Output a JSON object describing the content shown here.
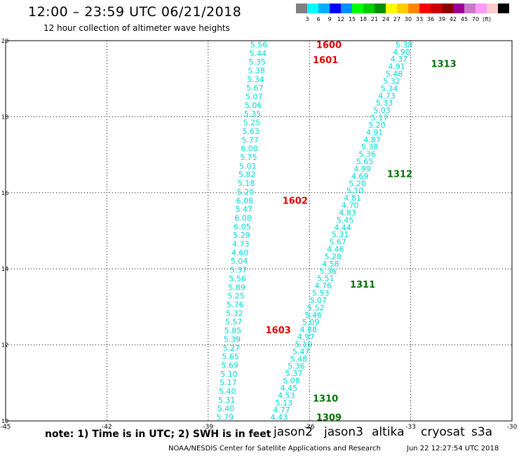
{
  "header": {
    "title": "12:00 – 23:59 UTC 06/21/2018",
    "subtitle": "12 hour collection of altimeter wave heights"
  },
  "legend": {
    "colors": [
      "#808080",
      "#00ffff",
      "#00b0ff",
      "#0000ff",
      "#0090ff",
      "#00ff00",
      "#00cc00",
      "#009000",
      "#ffff00",
      "#ffcc00",
      "#ff8800",
      "#ff0000",
      "#cc0000",
      "#880000",
      "#990099",
      "#cc77cc",
      "#ff99ff",
      "#ffcccc",
      "#000000"
    ],
    "labels": [
      "3",
      "6",
      "9",
      "12",
      "15",
      "18",
      "21",
      "24",
      "27",
      "30",
      "33",
      "36",
      "39",
      "42",
      "45",
      "70",
      "(ft)"
    ]
  },
  "map": {
    "x_ticks": [
      "-45",
      "-42",
      "-39",
      "-36",
      "-33",
      "-30"
    ],
    "y_ticks": [
      "20",
      "18",
      "16",
      "14",
      "12",
      "10"
    ]
  },
  "chart_data": {
    "type": "scatter",
    "xlim": [
      -45,
      -30
    ],
    "ylim": [
      10,
      20
    ],
    "x_ticks": [
      -45,
      -42,
      -39,
      -36,
      -33,
      -30
    ],
    "y_ticks": [
      10,
      12,
      14,
      16,
      18,
      20
    ],
    "grid": true,
    "pass_labels": [
      {
        "text": "1600",
        "lon": -35.8,
        "lat": 19.9,
        "color": "#e00000"
      },
      {
        "text": "1601",
        "lon": -35.9,
        "lat": 19.5,
        "color": "#e00000"
      },
      {
        "text": "1602",
        "lon": -36.8,
        "lat": 15.8,
        "color": "#e00000"
      },
      {
        "text": "1603",
        "lon": -37.3,
        "lat": 12.4,
        "color": "#e00000"
      },
      {
        "text": "1313",
        "lon": -32.4,
        "lat": 19.4,
        "color": "#007000"
      },
      {
        "text": "1312",
        "lon": -33.7,
        "lat": 16.5,
        "color": "#007000"
      },
      {
        "text": "1311",
        "lon": -34.8,
        "lat": 13.6,
        "color": "#007000"
      },
      {
        "text": "1310",
        "lon": -35.9,
        "lat": 10.6,
        "color": "#007000"
      },
      {
        "text": "1309",
        "lon": -35.8,
        "lat": 10.1,
        "color": "#007000"
      }
    ],
    "track_a": {
      "color": "#00d8d8",
      "lon_top": -37.5,
      "lat_top": 19.9,
      "lon_bottom": -38.5,
      "lat_bottom": 10.1,
      "values": [
        "5.56",
        "5.44",
        "5.35",
        "5.38",
        "5.34",
        "5.67",
        "5.07",
        "5.06",
        "5.35",
        "5.25",
        "5.63",
        "5.77",
        "6.00",
        "5.75",
        "5.01",
        "5.82",
        "5.18",
        "5.20",
        "6.08",
        "5.47",
        "6.08",
        "6.05",
        "5.29",
        "4.73",
        "4.60",
        "5.04",
        "5.37",
        "5.56",
        "5.89",
        "5.25",
        "5.76",
        "5.32",
        "5.57",
        "5.85",
        "5.39",
        "5.27",
        "5.65",
        "5.69",
        "5.10",
        "5.17",
        "5.40",
        "5.31",
        "5.40",
        "5.79"
      ]
    },
    "track_b": {
      "color": "#00d8d8",
      "lon_top": -33.2,
      "lat_top": 19.9,
      "lon_bottom": -36.9,
      "lat_bottom": 10.1,
      "values": [
        "5.38",
        "4.90",
        "4.37",
        "4.91",
        "5.48",
        "5.32",
        "5.34",
        "4.73",
        "5.33",
        "5.03",
        "5.17",
        "5.20",
        "4.91",
        "4.87",
        "5.38",
        "5.36",
        "5.65",
        "4.99",
        "4.69",
        "5.20",
        "5.10",
        "4.81",
        "4.70",
        "4.83",
        "5.45",
        "4.44",
        "5.31",
        "5.67",
        "4.46",
        "5.28",
        "4.58",
        "5.36",
        "5.51",
        "4.76",
        "5.53",
        "5.07",
        "5.52",
        "5.46",
        "5.09",
        "4.88",
        "4.97",
        "5.10",
        "5.47",
        "5.48",
        "5.36",
        "5.37",
        "5.08",
        "4.45",
        "4.53",
        "5.13",
        "4.77",
        "4.43"
      ]
    }
  },
  "footer": {
    "note": "note: 1) Time is in UTC; 2) SWH is in feet",
    "satellites": [
      {
        "name": "jason2",
        "color": "#0000dd"
      },
      {
        "name": "jason3",
        "color": "#007000"
      },
      {
        "name": "altika",
        "color": "#ff8800"
      },
      {
        "name": "cryosat",
        "color": "#e00000"
      },
      {
        "name": "s3a",
        "color": "#880000"
      }
    ],
    "credit": "NOAA/NESDIS Center for Satellite Applications and Research",
    "timestamp": "Jun 22 12:27:54 UTC 2018"
  }
}
